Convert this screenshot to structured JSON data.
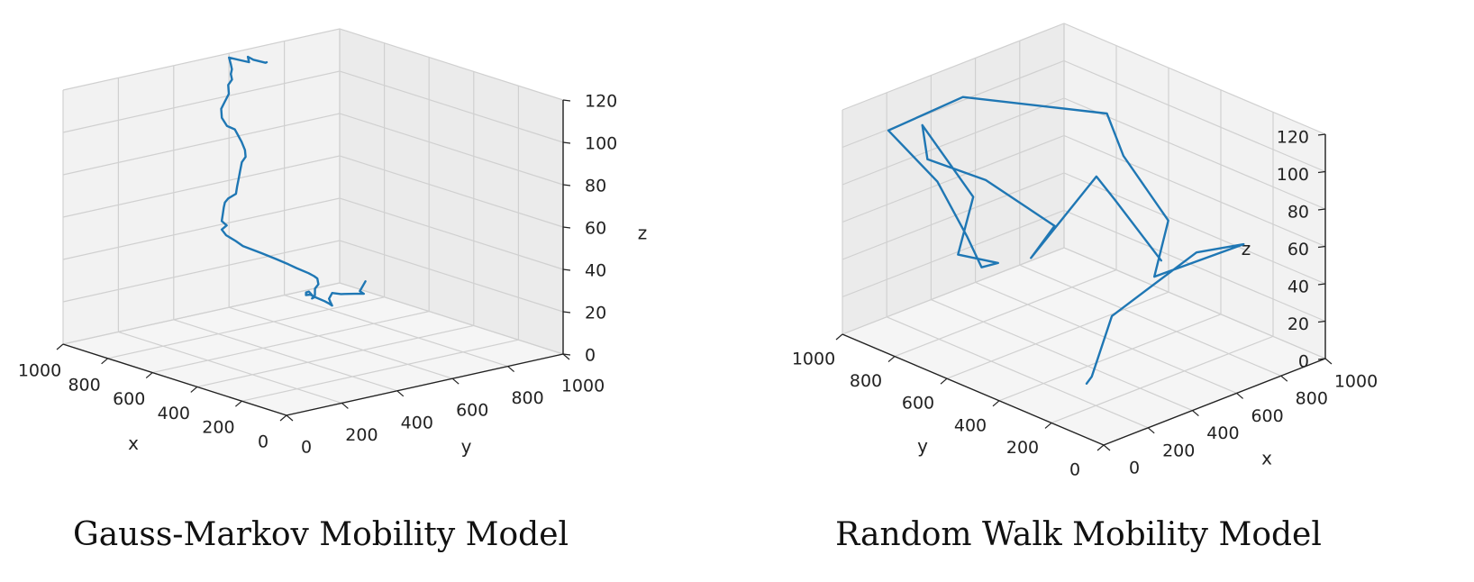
{
  "figure": {
    "captions": [
      "Gauss-Markov Mobility Model",
      "Random Walk Mobility Model"
    ]
  },
  "colors": {
    "series": "#1f77b4",
    "pane": "#f2f2f2",
    "grid": "#d0d0d0",
    "axis": "#222222"
  },
  "chart_data": [
    {
      "type": "line",
      "title": "",
      "xlabel": "x",
      "ylabel": "y",
      "zlabel": "z",
      "xlim": [
        0,
        1000
      ],
      "ylim": [
        0,
        1000
      ],
      "zlim": [
        0,
        120
      ],
      "xticks": [
        "0",
        "200",
        "400",
        "600",
        "800",
        "1000"
      ],
      "yticks": [
        "0",
        "200",
        "400",
        "600",
        "800",
        "1000"
      ],
      "zticks": [
        "0",
        "20",
        "40",
        "60",
        "80",
        "100",
        "120"
      ],
      "grid": true,
      "view": "right",
      "series": [
        {
          "x": [
            860,
            860,
            860,
            830,
            820,
            870,
            860,
            800,
            720,
            650,
            600,
            560,
            540,
            500,
            470,
            420,
            370,
            320,
            260,
            220,
            170,
            120,
            80,
            60,
            50,
            50,
            80,
            90,
            120,
            160,
            190,
            220,
            240,
            270,
            290,
            280,
            290,
            310,
            330,
            350,
            360,
            350,
            370,
            400,
            430,
            460,
            480,
            520,
            560,
            600,
            640,
            700,
            760,
            800,
            820,
            840,
            880,
            900,
            930,
            950,
            980,
            1000,
            980,
            960,
            990,
            990,
            960,
            980
          ],
          "y": [
            980,
            970,
            960,
            950,
            930,
            900,
            860,
            800,
            740,
            690,
            640,
            590,
            540,
            490,
            450,
            410,
            380,
            350,
            310,
            270,
            240,
            200,
            180,
            160,
            140,
            120,
            100,
            80,
            60,
            40,
            30,
            20,
            10,
            0,
            0,
            10,
            0,
            20,
            40,
            60,
            80,
            100,
            120,
            150,
            180,
            210,
            240,
            270,
            290,
            310,
            330,
            350,
            380,
            410,
            440,
            470,
            500,
            530,
            550,
            570,
            590,
            600,
            620,
            640,
            660,
            680,
            700,
            720
          ],
          "z": [
            6,
            4,
            2,
            2,
            3,
            2,
            4,
            5,
            8,
            10,
            14,
            18,
            22,
            26,
            28,
            32,
            35,
            36,
            38,
            40,
            44,
            50,
            54,
            58,
            60,
            62,
            64,
            66,
            68,
            70,
            71,
            72,
            74,
            76,
            78,
            80,
            82,
            84,
            86,
            87,
            88,
            90,
            92,
            94,
            96,
            98,
            99,
            100,
            102,
            103,
            104,
            103,
            104,
            106,
            108,
            110,
            112,
            113,
            114,
            115,
            116,
            118,
            117,
            116,
            117,
            115,
            114,
            113
          ]
        }
      ]
    },
    {
      "type": "line",
      "title": "",
      "xlabel": "x",
      "ylabel": "y",
      "zlabel": "z",
      "xlim": [
        0,
        1000
      ],
      "ylim": [
        0,
        1000
      ],
      "zlim": [
        0,
        120
      ],
      "xticks": [
        "0",
        "200",
        "400",
        "600",
        "800",
        "1000"
      ],
      "yticks": [
        "0",
        "200",
        "400",
        "600",
        "800",
        "1000"
      ],
      "zticks": [
        "0",
        "20",
        "40",
        "60",
        "80",
        "100",
        "120"
      ],
      "grid": true,
      "view": "left",
      "series": [
        {
          "x": [
            300,
            300,
            320,
            560,
            820,
            700,
            940,
            820,
            840,
            520,
            160,
            240,
            210,
            180,
            160,
            50,
            260,
            290,
            30,
            10,
            250,
            120,
            580,
            640,
            660
          ],
          "y": [
            320,
            300,
            240,
            120,
            160,
            400,
            550,
            620,
            700,
            980,
            960,
            840,
            700,
            620,
            540,
            600,
            720,
            940,
            700,
            460,
            400,
            380,
            520,
            500,
            340
          ],
          "z": [
            0,
            5,
            40,
            70,
            60,
            34,
            44,
            80,
            97,
            104,
            104,
            80,
            60,
            50,
            58,
            64,
            78,
            102,
            110,
            114,
            82,
            72,
            86,
            72,
            48
          ]
        }
      ]
    }
  ]
}
